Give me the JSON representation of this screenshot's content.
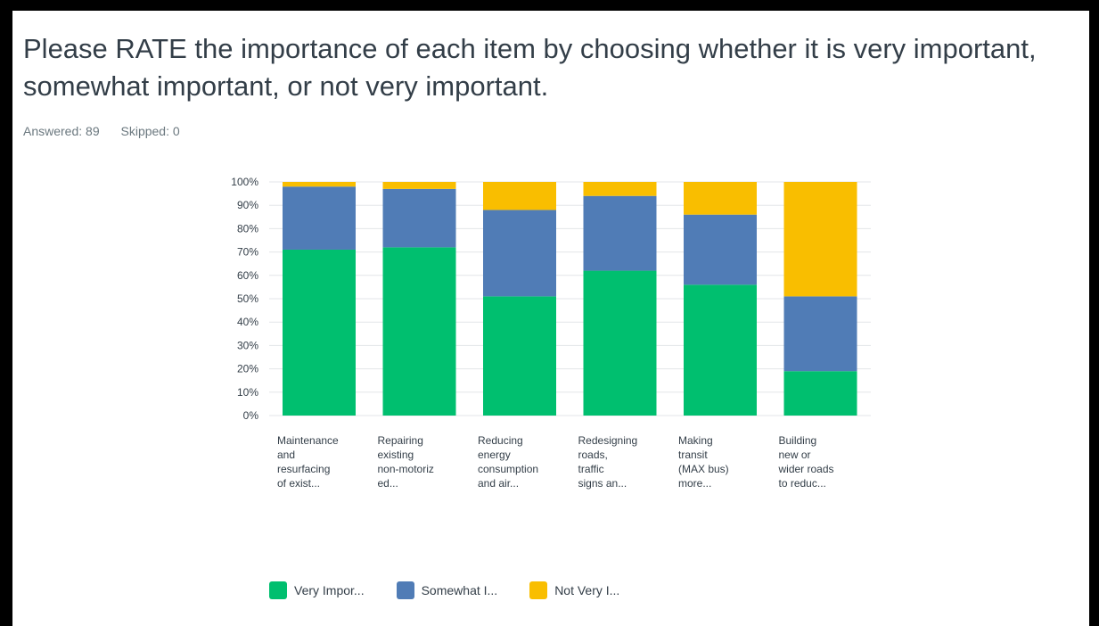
{
  "question": "Please RATE the importance of each item by choosing whether it is very important, somewhat important, or not very important.",
  "stats": {
    "answered": "Answered: 89",
    "skipped": "Skipped: 0"
  },
  "legend": [
    {
      "label": "Very Impor...",
      "color": "#00bf6f"
    },
    {
      "label": "Somewhat I...",
      "color": "#507cb6"
    },
    {
      "label": "Not Very I...",
      "color": "#f9be00"
    }
  ],
  "chart_data": {
    "type": "bar",
    "stacked": true,
    "categories": [
      [
        "Maintenance",
        "and",
        "resurfacing",
        "of exist..."
      ],
      [
        "Repairing",
        "existing",
        "non-motoriz",
        "ed..."
      ],
      [
        "Reducing",
        "energy",
        "consumption",
        "and air..."
      ],
      [
        "Redesigning",
        "roads,",
        "traffic",
        "signs an..."
      ],
      [
        "Making",
        "transit",
        "(MAX bus)",
        "more..."
      ],
      [
        "Building",
        "new or",
        "wider roads",
        "to reduc..."
      ]
    ],
    "series": [
      {
        "name": "Very Impor...",
        "color": "#00bf6f",
        "values": [
          71,
          72,
          51,
          62,
          56,
          19
        ]
      },
      {
        "name": "Somewhat I...",
        "color": "#507cb6",
        "values": [
          27,
          25,
          37,
          32,
          30,
          32
        ]
      },
      {
        "name": "Not Very I...",
        "color": "#f9be00",
        "values": [
          2,
          3,
          12,
          6,
          14,
          49
        ]
      }
    ],
    "yticks": [
      "0%",
      "10%",
      "20%",
      "30%",
      "40%",
      "50%",
      "60%",
      "70%",
      "80%",
      "90%",
      "100%"
    ],
    "ylim": [
      0,
      100
    ],
    "grid": true,
    "legend_position": "bottom"
  }
}
